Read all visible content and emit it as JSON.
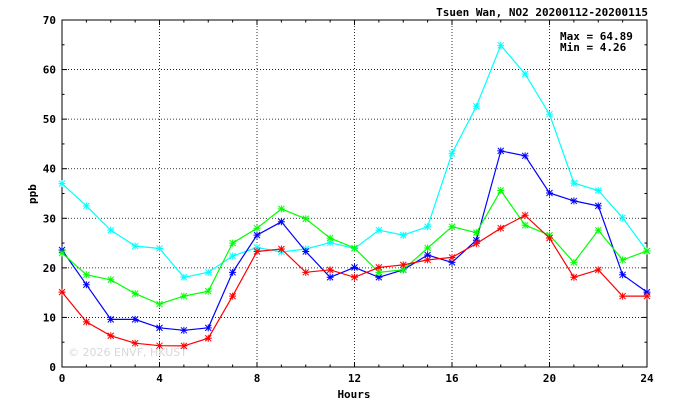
{
  "chart_data": {
    "type": "line",
    "title": "Tsuen Wan, NO2 20200112-20200115",
    "xlabel": "Hours",
    "ylabel": "ppb",
    "xlim": [
      0,
      24
    ],
    "ylim": [
      0,
      70
    ],
    "xticks": [
      "0",
      "4",
      "8",
      "12",
      "16",
      "20",
      "24"
    ],
    "yticks": [
      "0",
      "10",
      "20",
      "30",
      "40",
      "50",
      "60",
      "70"
    ],
    "grid": true,
    "legend": "none",
    "stats": {
      "max": "Max = 64.89",
      "min": "Min =  4.26"
    },
    "watermark": "© 2026 ENVF, HKUST",
    "x": [
      0,
      1,
      2,
      3,
      4,
      5,
      6,
      7,
      8,
      9,
      10,
      11,
      12,
      13,
      14,
      15,
      16,
      17,
      18,
      19,
      20,
      21,
      22,
      23,
      24
    ],
    "series": [
      {
        "color": "#00ffff",
        "values": [
          37.0,
          32.5,
          27.6,
          24.4,
          23.9,
          18.1,
          19.1,
          22.4,
          24.1,
          23.2,
          23.8,
          25.1,
          23.9,
          27.6,
          26.6,
          28.3,
          43.1,
          52.6,
          64.89,
          59.1,
          51.0,
          37.1,
          35.6,
          30.1,
          23.4
        ]
      },
      {
        "color": "#0000ff",
        "values": [
          23.6,
          16.6,
          9.6,
          9.6,
          7.9,
          7.4,
          7.9,
          19.1,
          26.6,
          29.3,
          23.3,
          18.1,
          20.1,
          18.1,
          19.6,
          22.6,
          21.1,
          25.6,
          43.6,
          42.6,
          35.1,
          33.5,
          32.5,
          18.6,
          15.1
        ]
      },
      {
        "color": "#00ff00",
        "values": [
          23.0,
          18.6,
          17.6,
          14.8,
          12.7,
          14.3,
          15.3,
          25.0,
          28.0,
          31.9,
          29.9,
          26.0,
          24.0,
          19.1,
          19.6,
          24.0,
          28.3,
          27.1,
          35.6,
          28.6,
          26.6,
          21.1,
          27.6,
          21.6,
          23.4
        ]
      },
      {
        "color": "#ff0000",
        "values": [
          15.1,
          9.1,
          6.3,
          4.8,
          4.3,
          4.26,
          5.8,
          14.3,
          23.3,
          23.8,
          19.1,
          19.6,
          18.1,
          20.1,
          20.6,
          21.6,
          22.1,
          24.9,
          28.0,
          30.6,
          26.0,
          18.1,
          19.6,
          14.3,
          14.3
        ]
      }
    ]
  }
}
